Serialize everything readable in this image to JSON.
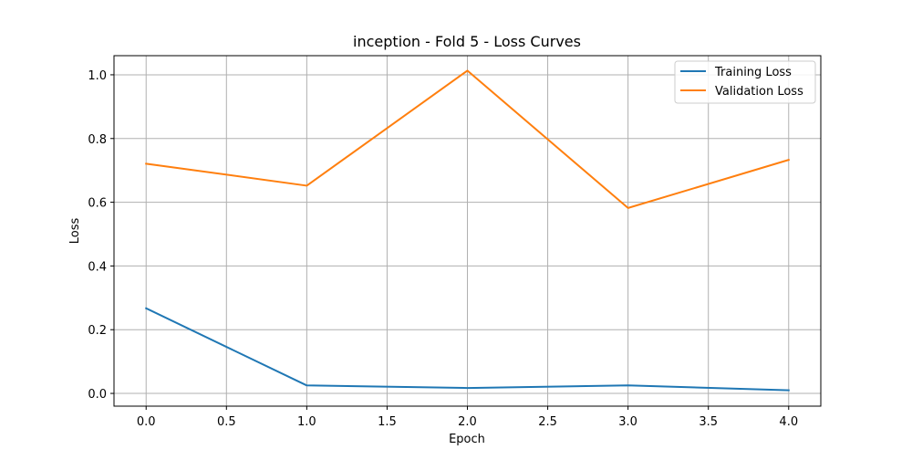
{
  "chart_data": {
    "type": "line",
    "title": "inception - Fold 5 - Loss Curves",
    "xlabel": "Epoch",
    "ylabel": "Loss",
    "xlim": [
      -0.2,
      4.2
    ],
    "ylim": [
      -0.04,
      1.06
    ],
    "xticks": [
      0.0,
      0.5,
      1.0,
      1.5,
      2.0,
      2.5,
      3.0,
      3.5,
      4.0
    ],
    "xtick_labels": [
      "0.0",
      "0.5",
      "1.0",
      "1.5",
      "2.0",
      "2.5",
      "3.0",
      "3.5",
      "4.0"
    ],
    "yticks": [
      0.0,
      0.2,
      0.4,
      0.6,
      0.8,
      1.0
    ],
    "ytick_labels": [
      "0.0",
      "0.2",
      "0.4",
      "0.6",
      "0.8",
      "1.0"
    ],
    "grid": true,
    "legend_position": "top-right",
    "x": [
      0,
      1,
      2,
      3,
      4
    ],
    "series": [
      {
        "name": "Training Loss",
        "color": "#1f77b4",
        "values": [
          0.267,
          0.025,
          0.017,
          0.025,
          0.01
        ]
      },
      {
        "name": "Validation Loss",
        "color": "#ff7f0e",
        "values": [
          0.721,
          0.652,
          1.013,
          0.582,
          0.733
        ]
      }
    ]
  }
}
